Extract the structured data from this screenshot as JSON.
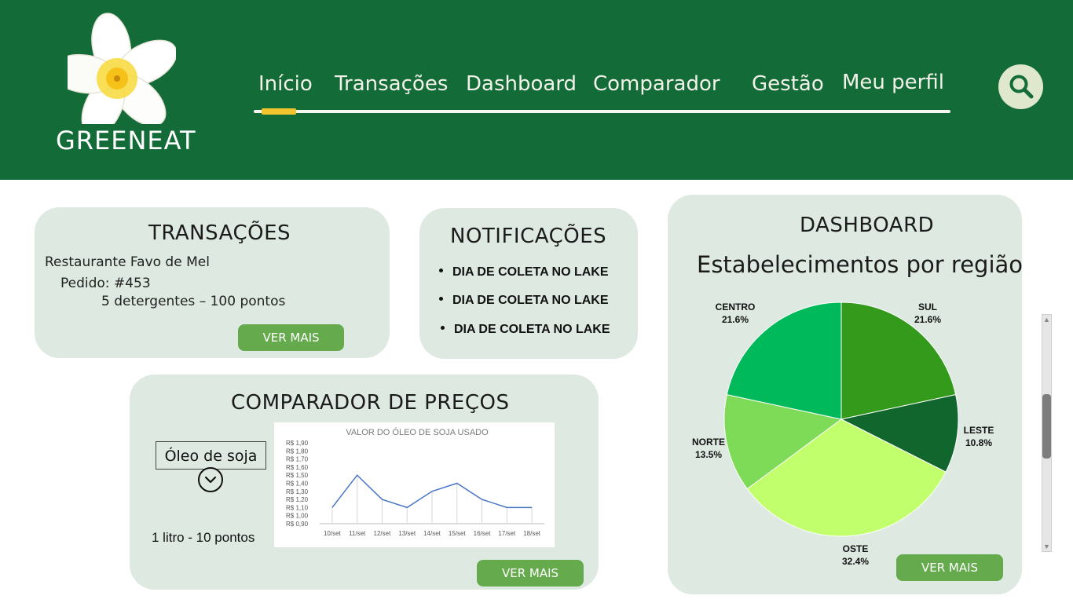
{
  "brand": {
    "name": "GREENEAT"
  },
  "nav": {
    "items": [
      {
        "label": "Início",
        "active": true
      },
      {
        "label": "Transações"
      },
      {
        "label": "Dashboard"
      },
      {
        "label": "Comparador"
      },
      {
        "label": "Gestão"
      },
      {
        "label": "Meu perfil"
      }
    ],
    "search_icon": "search-icon",
    "active_color": "#f2c52e"
  },
  "colors": {
    "header": "#136b37",
    "card": "#dde9e1",
    "button": "#65ab4d"
  },
  "transacoes": {
    "title": "TRANSAÇÕES",
    "merchant": "Restaurante Favo de Mel",
    "order": "Pedido: #453",
    "item": "5 detergentes – 100 pontos",
    "button": "VER MAIS"
  },
  "notificacoes": {
    "title": "NOTIFICAÇÕES",
    "items": [
      "DIA DE COLETA NO LAKE",
      "DIA DE COLETA NO LAKE",
      "DIA DE COLETA NO LAKE"
    ]
  },
  "comparador": {
    "title": "COMPARADOR DE PREÇOS",
    "selected_product": "Óleo de soja",
    "dropdown_icon": "chevron-down-icon",
    "rate": "1 litro - 10 pontos",
    "button": "VER MAIS"
  },
  "dashboard": {
    "title": "DASHBOARD",
    "subtitle": "Estabelecimentos por região",
    "button": "VER MAIS"
  },
  "chart_data": [
    {
      "type": "line",
      "title": "VALOR DO ÓLEO DE SOJA USADO",
      "categories": [
        "10/set",
        "11/set",
        "12/set",
        "13/set",
        "14/set",
        "15/set",
        "16/set",
        "17/set",
        "18/set"
      ],
      "values": [
        1.1,
        1.5,
        1.2,
        1.1,
        1.3,
        1.4,
        1.2,
        1.1,
        1.1
      ],
      "yticks": [
        "R$ 1,90",
        "R$ 1,80",
        "R$ 1,70",
        "R$ 1,60",
        "R$ 1,50",
        "R$ 1,40",
        "R$ 1,30",
        "R$ 1,20",
        "R$ 1,10",
        "R$ 1,00",
        "R$ 0,90"
      ],
      "ylim": [
        0.9,
        1.9
      ],
      "grid": "vertical",
      "color": "#4a76c6"
    },
    {
      "type": "pie",
      "slices": [
        {
          "label": "SUL",
          "pct": "21.6%",
          "value": 21.6,
          "color": "#339a1b"
        },
        {
          "label": "LESTE",
          "pct": "10.8%",
          "value": 10.8,
          "color": "#10662d"
        },
        {
          "label": "OSTE",
          "pct": "32.4%",
          "value": 32.4,
          "color": "#c2ff6d"
        },
        {
          "label": "NORTE",
          "pct": "13.5%",
          "value": 13.5,
          "color": "#7edb57"
        },
        {
          "label": "CENTRO",
          "pct": "21.6%",
          "value": 21.6,
          "color": "#00b95a"
        }
      ]
    }
  ]
}
